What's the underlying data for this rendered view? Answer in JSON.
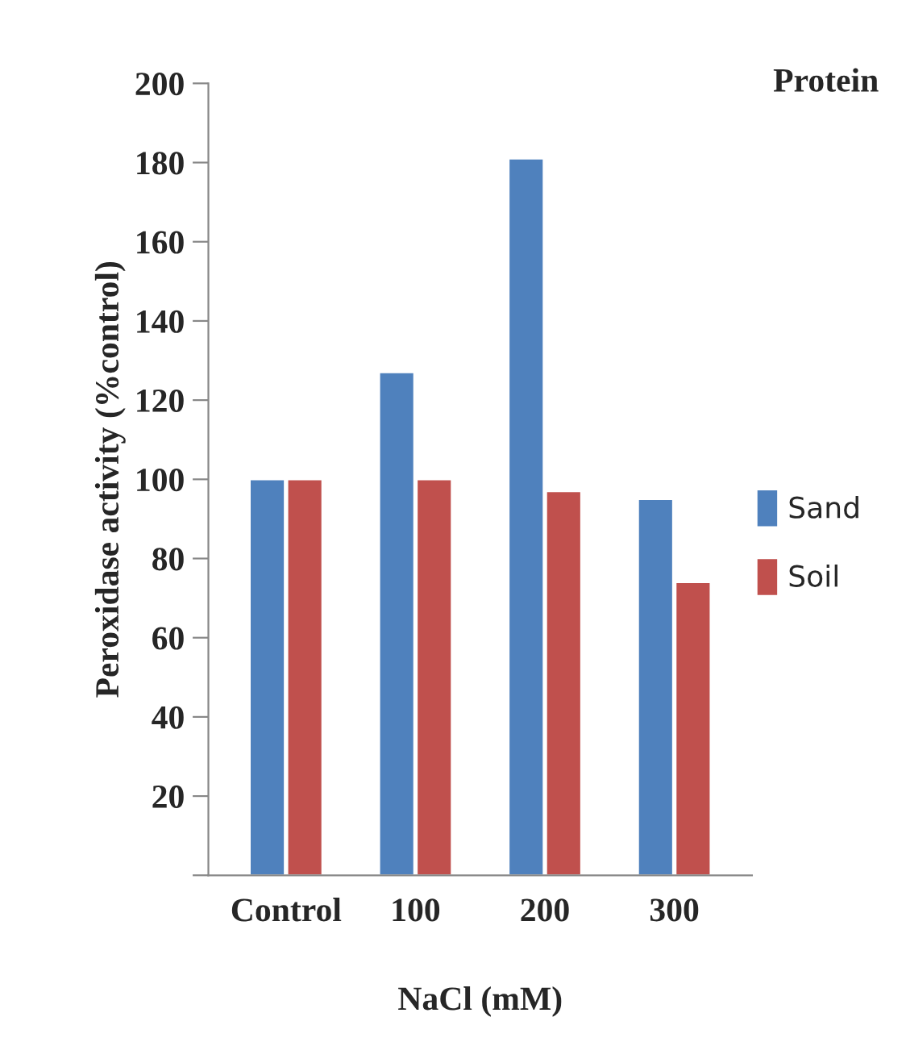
{
  "chart_data": {
    "type": "bar",
    "title": "Protein",
    "xlabel": "NaCl (mM)",
    "ylabel": "Peroxidase activity (%control)",
    "categories": [
      "Control",
      "100",
      "200",
      "300"
    ],
    "series": [
      {
        "name": "Sand",
        "color": "#4f81bd",
        "values": [
          100,
          127,
          181,
          95
        ]
      },
      {
        "name": "Soil",
        "color": "#c0504d",
        "values": [
          100,
          100,
          97,
          74
        ]
      }
    ],
    "ylim": [
      0,
      200
    ],
    "yticks": [
      {
        "value": 0,
        "label": null
      },
      20,
      40,
      60,
      80,
      100,
      120,
      140,
      160,
      180,
      200
    ],
    "grid": false,
    "legend": "right"
  }
}
